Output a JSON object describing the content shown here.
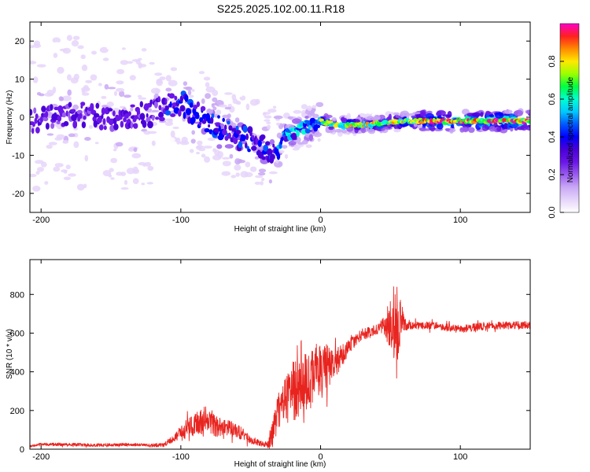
{
  "title": "S225.2025.102.00.11.R18",
  "colors": {
    "snr_line": "#e8241f",
    "cmap": [
      "#ffffff",
      "#e6d5fa",
      "#c9a8f5",
      "#9a5cee",
      "#6a16e8",
      "#4a00d8",
      "#0000ff",
      "#0058ff",
      "#00c8ff",
      "#00ffd0",
      "#00ff40",
      "#9aff00",
      "#ffe800",
      "#ff8a00",
      "#ff2020",
      "#ff00c8"
    ]
  },
  "chart_data": [
    {
      "type": "heatmap",
      "title": "S225.2025.102.00.11.R18",
      "xlabel": "Height of straight line (km)",
      "ylabel": "Frequency (Hz)",
      "xlim": [
        -208,
        150
      ],
      "ylim": [
        -25,
        25
      ],
      "xticks": [
        -200,
        -100,
        0,
        100
      ],
      "xtick_labels": [
        "-200",
        "-100",
        "0",
        "100"
      ],
      "yticks": [
        -20,
        -10,
        0,
        10,
        20
      ],
      "ytick_labels": [
        "-20",
        "-10",
        "0",
        "10",
        "20"
      ],
      "ridge": {
        "x": [
          -208,
          -180,
          -150,
          -120,
          -110,
          -100,
          -90,
          -80,
          -70,
          -60,
          -50,
          -40,
          -33,
          -25,
          -15,
          -5,
          0,
          10,
          30,
          60,
          100,
          150
        ],
        "freq_hz": [
          -1,
          1,
          0,
          1,
          3,
          4,
          1,
          -1,
          -3,
          -5,
          -6,
          -8,
          -9,
          -5,
          -3,
          -2,
          -1,
          -2,
          -2,
          -1,
          -1,
          -1
        ]
      },
      "colorbar": {
        "label": "Normalized spectral amplitude",
        "range": [
          0,
          1
        ],
        "ticks": [
          0.0,
          0.2,
          0.4,
          0.6,
          0.8
        ],
        "tick_labels": [
          "0.0",
          "0.2",
          "0.4",
          "0.6",
          "0.8"
        ]
      }
    },
    {
      "type": "line",
      "xlabel": "Height of straight line (km)",
      "ylabel": "SNR (10 * v/v)",
      "xlim": [
        -208,
        150
      ],
      "ylim": [
        0,
        980
      ],
      "xticks": [
        -200,
        -100,
        0,
        100
      ],
      "xtick_labels": [
        "-200",
        "-100",
        "0",
        "100"
      ],
      "yticks": [
        0,
        200,
        400,
        600,
        800
      ],
      "ytick_labels": [
        "0",
        "200",
        "400",
        "600",
        "800"
      ],
      "series": [
        {
          "x": [
            -208,
            -200,
            -180,
            -160,
            -140,
            -120,
            -112,
            -105,
            -100,
            -95,
            -90,
            -85,
            -80,
            -75,
            -70,
            -65,
            -60,
            -55,
            -50,
            -45,
            -40,
            -35,
            -30,
            -25,
            -20,
            -15,
            -10,
            -5,
            0,
            5,
            10,
            15,
            20,
            25,
            30,
            35,
            40,
            45,
            50,
            53,
            55,
            58,
            60,
            65,
            70,
            80,
            90,
            100,
            110,
            120,
            130,
            140,
            150
          ],
          "y": [
            15,
            25,
            25,
            20,
            25,
            20,
            22,
            60,
            80,
            110,
            120,
            140,
            150,
            120,
            110,
            110,
            90,
            80,
            40,
            40,
            20,
            60,
            200,
            250,
            300,
            330,
            350,
            380,
            400,
            420,
            450,
            480,
            530,
            560,
            600,
            600,
            620,
            640,
            650,
            640,
            640,
            660,
            650,
            640,
            640,
            640,
            630,
            620,
            630,
            640,
            640,
            640,
            640
          ],
          "noise": [
            5,
            8,
            8,
            8,
            8,
            8,
            10,
            20,
            40,
            50,
            60,
            80,
            70,
            60,
            40,
            40,
            40,
            30,
            20,
            20,
            10,
            60,
            100,
            130,
            160,
            170,
            160,
            160,
            160,
            130,
            80,
            60,
            40,
            30,
            30,
            30,
            30,
            40,
            140,
            220,
            230,
            100,
            40,
            20,
            20,
            20,
            20,
            20,
            20,
            20,
            20,
            20,
            20
          ]
        }
      ]
    }
  ]
}
